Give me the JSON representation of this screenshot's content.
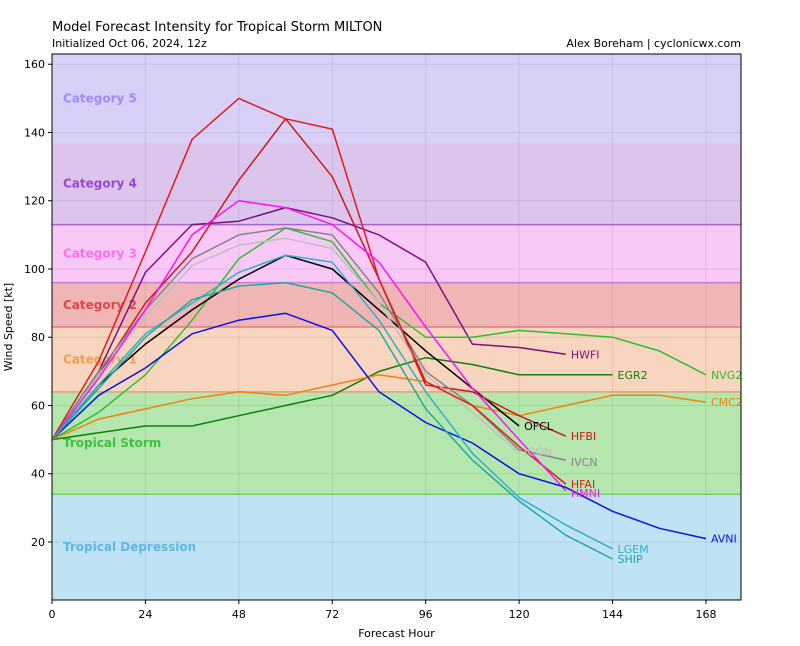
{
  "header": {
    "title": "Model Forecast Intensity for Tropical Storm MILTON",
    "subtitle": "Initialized Oct 06, 2024, 12z",
    "credit": "Alex Boreham | cyclonicwx.com"
  },
  "chart_data": {
    "type": "line",
    "xlabel": "Forecast Hour",
    "ylabel": "Wind Speed [kt]",
    "xlim": [
      0,
      177
    ],
    "ylim": [
      3,
      163
    ],
    "xticks": [
      0,
      24,
      48,
      72,
      96,
      120,
      144,
      168
    ],
    "yticks": [
      20,
      40,
      60,
      80,
      100,
      120,
      140,
      160
    ],
    "grid": true,
    "bands": [
      {
        "name": "Tropical Depression",
        "min": 3,
        "max": 34,
        "fill": "#bfe3f5",
        "line": "#bfe3f5",
        "text": "#5ab8e6"
      },
      {
        "name": "Tropical Storm",
        "min": 34,
        "max": 64,
        "fill": "#b4e6ae",
        "line": "#6fd26a",
        "text": "#3cc23c"
      },
      {
        "name": "Category 1",
        "min": 64,
        "max": 83,
        "fill": "#f7d5be",
        "line": "#e79a7d",
        "text": "#f29b55"
      },
      {
        "name": "Category 2",
        "min": 83,
        "max": 96,
        "fill": "#f0b6b6",
        "line": "#e07f7f",
        "text": "#dd4747"
      },
      {
        "name": "Category 3",
        "min": 96,
        "max": 113,
        "fill": "#f8c8f7",
        "line": "#c77fd9",
        "text": "#ff6cf0"
      },
      {
        "name": "Category 4",
        "min": 113,
        "max": 137,
        "fill": "#dcc5ec",
        "line": "#a06acc",
        "text": "#9b45d6"
      },
      {
        "name": "Category 5",
        "min": 137,
        "max": 163,
        "fill": "#d8d0f7",
        "line": "#d8d0f7",
        "text": "#a18cf0"
      }
    ],
    "series": [
      {
        "name": "HWFI",
        "color": "#7f0f7f",
        "x": [
          0,
          12,
          24,
          36,
          48,
          60,
          72,
          84,
          96,
          108,
          120,
          132
        ],
        "y": [
          50,
          70,
          99,
          113,
          114,
          118,
          115,
          110,
          102,
          78,
          77,
          75
        ]
      },
      {
        "name": "EGR2",
        "color": "#0e800e",
        "x": [
          0,
          12,
          24,
          36,
          48,
          60,
          72,
          84,
          96,
          108,
          120,
          132,
          144
        ],
        "y": [
          50,
          52,
          54,
          54,
          57,
          60,
          63,
          70,
          74,
          72,
          69,
          69,
          69
        ]
      },
      {
        "name": "NVG2",
        "color": "#2fbf2f",
        "x": [
          0,
          12,
          24,
          36,
          48,
          60,
          72,
          84,
          96,
          108,
          120,
          132,
          144,
          156,
          168
        ],
        "y": [
          50,
          58,
          69,
          85,
          103,
          112,
          108,
          90,
          80,
          80,
          82,
          81,
          80,
          76,
          69
        ]
      },
      {
        "name": "CMC2",
        "color": "#f0820e",
        "x": [
          0,
          12,
          24,
          36,
          48,
          60,
          72,
          84,
          96,
          108,
          120,
          132,
          144,
          156,
          168
        ],
        "y": [
          50,
          56,
          59,
          62,
          64,
          63,
          66,
          69,
          67,
          60,
          57,
          60,
          63,
          63,
          61
        ]
      },
      {
        "name": "OFCL",
        "color": "#000000",
        "x": [
          0,
          12,
          24,
          36,
          48,
          60,
          72,
          84,
          96,
          108,
          120
        ],
        "y": [
          50,
          66,
          78,
          88,
          97,
          104,
          100,
          88,
          76,
          65,
          54
        ]
      },
      {
        "name": "HFBI",
        "color": "#cc1a1a",
        "x": [
          0,
          12,
          24,
          36,
          48,
          60,
          72,
          84,
          96,
          108,
          120,
          132
        ],
        "y": [
          50,
          69,
          90,
          105,
          126,
          144,
          127,
          97,
          66,
          64,
          57,
          51
        ]
      },
      {
        "name": "ICON",
        "color": "#bfbfbf",
        "x": [
          0,
          12,
          24,
          36,
          48,
          60,
          72,
          84,
          96,
          108,
          120
        ],
        "y": [
          50,
          69,
          86,
          101,
          107,
          109,
          106,
          90,
          69,
          58,
          46
        ]
      },
      {
        "name": "IVCN",
        "color": "#858585",
        "x": [
          0,
          12,
          24,
          36,
          48,
          60,
          72,
          84,
          96,
          108,
          120,
          132
        ],
        "y": [
          50,
          70,
          88,
          103,
          110,
          112,
          110,
          93,
          70,
          60,
          47,
          44
        ]
      },
      {
        "name": "HFAI",
        "color": "#e01c1c",
        "x": [
          0,
          12,
          24,
          36,
          48,
          60,
          72,
          84,
          96,
          108,
          120,
          132
        ],
        "y": [
          50,
          73,
          105,
          138,
          150,
          144,
          141,
          97,
          67,
          60,
          48,
          37
        ]
      },
      {
        "name": "HMNI",
        "color": "#ff10ff",
        "x": [
          0,
          12,
          24,
          36,
          48,
          60,
          72,
          84,
          96,
          108,
          120,
          132
        ],
        "y": [
          50,
          68,
          88,
          110,
          120,
          118,
          113,
          102,
          83,
          65,
          50,
          35
        ]
      },
      {
        "name": "AVNI",
        "color": "#0a12e6",
        "x": [
          0,
          12,
          24,
          36,
          48,
          60,
          72,
          84,
          96,
          108,
          120,
          132,
          144,
          156,
          168
        ],
        "y": [
          50,
          63,
          71,
          81,
          85,
          87,
          82,
          64,
          55,
          49,
          40,
          36,
          29,
          24,
          21
        ]
      },
      {
        "name": "LGEM",
        "color": "#2eb1c9",
        "x": [
          0,
          12,
          24,
          36,
          48,
          60,
          72,
          84,
          96,
          108,
          120,
          132,
          144
        ],
        "y": [
          50,
          66,
          81,
          90,
          99,
          104,
          102,
          85,
          64,
          46,
          33,
          25,
          18
        ]
      },
      {
        "name": "SHIP",
        "color": "#21a8a0",
        "x": [
          0,
          12,
          24,
          36,
          48,
          60,
          72,
          84,
          96,
          108,
          120,
          132,
          144
        ],
        "y": [
          50,
          65,
          80,
          91,
          95,
          96,
          93,
          82,
          59,
          44,
          32,
          22,
          15
        ]
      }
    ]
  }
}
